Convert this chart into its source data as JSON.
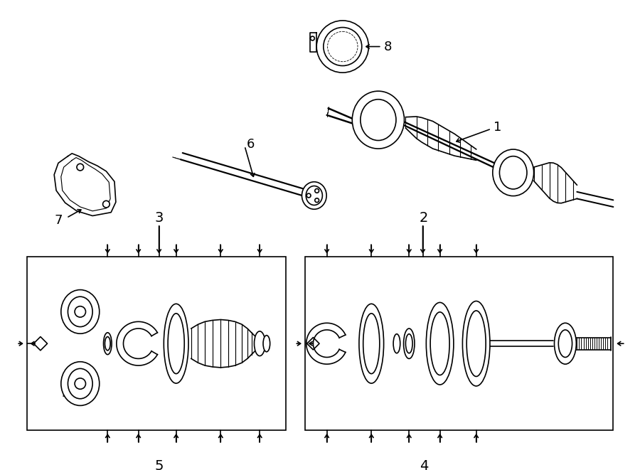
{
  "bg_color": "#ffffff",
  "lc": "#000000",
  "lw": 1.2,
  "fig_width": 9.0,
  "fig_height": 6.61,
  "dpi": 100
}
